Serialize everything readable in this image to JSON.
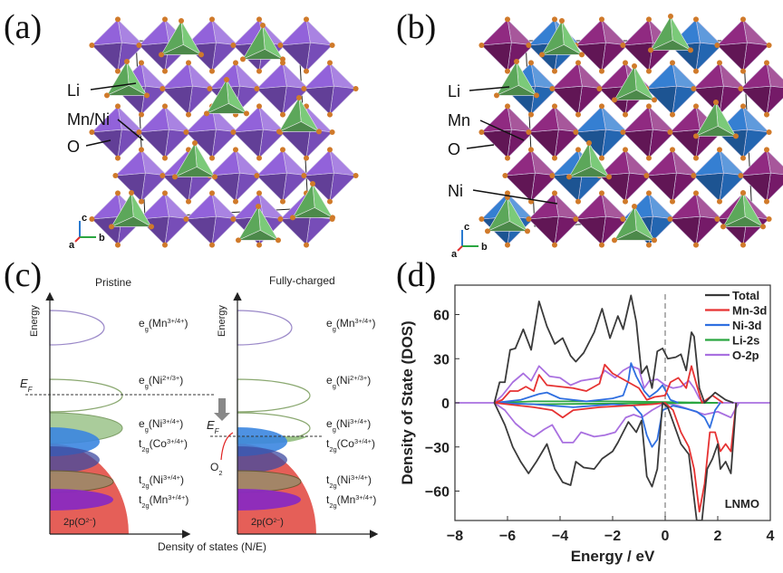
{
  "panels": {
    "a": {
      "label": "(a)",
      "atoms": [
        "Li",
        "Mn/Ni",
        "O"
      ],
      "axes": [
        "c",
        "a",
        "b"
      ],
      "colors": {
        "octahedra": "#8c5ad8",
        "tetrahedra": "#6cc46a",
        "oxygen": "#d07a2a"
      }
    },
    "b": {
      "label": "(b)",
      "atoms": [
        "Li",
        "Mn",
        "O",
        "Ni"
      ],
      "axes": [
        "c",
        "a",
        "b"
      ],
      "colors": {
        "mn_octahedra": "#8a1f7a",
        "ni_octahedra": "#2a78d0",
        "tetrahedra": "#6cc46a",
        "oxygen": "#d07a2a"
      }
    },
    "c": {
      "label": "(c)",
      "left_title": "Pristine",
      "right_title": "Fully-charged",
      "y_axis": "Energy",
      "x_axis": "Density of states (N/E)",
      "fermi": "E",
      "fermi_sub": "F",
      "o2": "O",
      "o2_sub": "2",
      "o2p": "2p(O",
      "o2p_sup": "2−",
      "o2p_close": ")",
      "levels": [
        [
          "e",
          "g",
          "(Mn",
          "3+/4+",
          ")"
        ],
        [
          "e",
          "g",
          "(Ni",
          "2+/3+",
          ")"
        ],
        [
          "e",
          "g",
          "(Ni",
          "3+/4+",
          ")"
        ],
        [
          "t",
          "2g",
          "(Co",
          "3+/4+",
          ")"
        ],
        [
          "t",
          "2g",
          "(Ni",
          "3+/4+",
          ")"
        ],
        [
          "t",
          "2g",
          "(Mn",
          "3+/4+",
          ")"
        ]
      ]
    },
    "d": {
      "label": "(d)"
    }
  },
  "chart_data": {
    "type": "line",
    "xlabel": "Energy / eV",
    "ylabel": "Density of State (DOS)",
    "xlim": [
      -8,
      4
    ],
    "ylim": [
      -80,
      80
    ],
    "xticks": [
      -8,
      -6,
      -4,
      -2,
      0,
      2,
      4
    ],
    "yticks": [
      -60,
      -30,
      0,
      30,
      60
    ],
    "annotation": "LNMO",
    "fermi_line_x": 0,
    "legend_placement": "top-right",
    "series": [
      {
        "name": "Total",
        "color": "#3a3a3a",
        "up": [
          [
            -6.5,
            0
          ],
          [
            -6.3,
            14
          ],
          [
            -6.1,
            14
          ],
          [
            -5.9,
            36
          ],
          [
            -5.7,
            37
          ],
          [
            -5.4,
            50
          ],
          [
            -5.1,
            36
          ],
          [
            -4.8,
            69
          ],
          [
            -4.5,
            52
          ],
          [
            -4.2,
            40
          ],
          [
            -3.9,
            44
          ],
          [
            -3.6,
            32
          ],
          [
            -3.4,
            28
          ],
          [
            -3.1,
            34
          ],
          [
            -2.7,
            48
          ],
          [
            -2.4,
            64
          ],
          [
            -2.1,
            44
          ],
          [
            -1.8,
            59
          ],
          [
            -1.6,
            50
          ],
          [
            -1.3,
            73
          ],
          [
            -1.1,
            55
          ],
          [
            -0.9,
            20
          ],
          [
            -0.7,
            25
          ],
          [
            -0.5,
            10
          ],
          [
            -0.3,
            35
          ],
          [
            -0.1,
            37
          ],
          [
            0.1,
            30
          ],
          [
            0.4,
            31
          ],
          [
            0.6,
            33
          ],
          [
            0.8,
            22
          ],
          [
            1.0,
            48
          ],
          [
            1.1,
            45
          ],
          [
            1.3,
            10
          ],
          [
            1.5,
            0
          ],
          [
            1.9,
            7
          ],
          [
            2.3,
            2
          ],
          [
            2.6,
            0
          ]
        ],
        "down": [
          [
            -6.5,
            0
          ],
          [
            -6.1,
            -15
          ],
          [
            -5.8,
            -30
          ],
          [
            -5.5,
            -40
          ],
          [
            -5.2,
            -48
          ],
          [
            -4.9,
            -40
          ],
          [
            -4.5,
            -28
          ],
          [
            -4.2,
            -45
          ],
          [
            -3.9,
            -54
          ],
          [
            -3.6,
            -56
          ],
          [
            -3.4,
            -40
          ],
          [
            -3.1,
            -44
          ],
          [
            -2.7,
            -45
          ],
          [
            -2.4,
            -38
          ],
          [
            -2.0,
            -33
          ],
          [
            -1.8,
            -27
          ],
          [
            -1.4,
            -13
          ],
          [
            -1.1,
            -20
          ],
          [
            -0.9,
            -12
          ],
          [
            -0.7,
            -50
          ],
          [
            -0.5,
            -57
          ],
          [
            -0.3,
            -45
          ],
          [
            -0.1,
            0
          ],
          [
            0.1,
            -3
          ],
          [
            0.4,
            -18
          ],
          [
            0.6,
            -28
          ],
          [
            0.9,
            -35
          ],
          [
            1.2,
            -80
          ],
          [
            1.4,
            -80
          ],
          [
            1.6,
            -45
          ],
          [
            1.8,
            -38
          ],
          [
            2.0,
            -28
          ],
          [
            2.1,
            -45
          ],
          [
            2.3,
            -40
          ],
          [
            2.5,
            -48
          ],
          [
            2.7,
            0
          ]
        ]
      },
      {
        "name": "Mn-3d",
        "color": "#e63232",
        "up": [
          [
            -6.5,
            0
          ],
          [
            -6.2,
            2
          ],
          [
            -5.9,
            8
          ],
          [
            -5.6,
            8
          ],
          [
            -5.3,
            11
          ],
          [
            -5.0,
            8
          ],
          [
            -4.8,
            19
          ],
          [
            -4.5,
            12
          ],
          [
            -4.0,
            11
          ],
          [
            -3.5,
            10
          ],
          [
            -3.0,
            8
          ],
          [
            -2.5,
            13
          ],
          [
            -2.3,
            26
          ],
          [
            -2.0,
            20
          ],
          [
            -1.5,
            15
          ],
          [
            -1.0,
            10
          ],
          [
            -0.7,
            2
          ],
          [
            -0.4,
            4
          ],
          [
            0,
            5
          ],
          [
            0.2,
            14
          ],
          [
            0.5,
            17
          ],
          [
            0.8,
            10
          ],
          [
            1.0,
            25
          ],
          [
            1.2,
            12
          ],
          [
            1.4,
            0
          ],
          [
            1.8,
            5
          ],
          [
            2.2,
            0
          ]
        ],
        "down": [
          [
            -6.5,
            0
          ],
          [
            -5,
            -3
          ],
          [
            -4.3,
            -5
          ],
          [
            -3.9,
            -10
          ],
          [
            -3.5,
            -5
          ],
          [
            -2.5,
            -3
          ],
          [
            -1.5,
            -2
          ],
          [
            -0.5,
            -1
          ],
          [
            0,
            0
          ],
          [
            0.3,
            -5
          ],
          [
            0.6,
            -20
          ],
          [
            0.9,
            -30
          ],
          [
            1.1,
            -45
          ],
          [
            1.3,
            -74
          ],
          [
            1.5,
            -55
          ],
          [
            1.7,
            -20
          ],
          [
            1.9,
            -20
          ],
          [
            2.1,
            -33
          ],
          [
            2.3,
            -28
          ],
          [
            2.5,
            -33
          ],
          [
            2.7,
            0
          ]
        ]
      },
      {
        "name": "Ni-3d",
        "color": "#2f6fe0",
        "up": [
          [
            -6.5,
            0
          ],
          [
            -5.5,
            2
          ],
          [
            -4.8,
            6
          ],
          [
            -4.5,
            7
          ],
          [
            -4.0,
            3
          ],
          [
            -3,
            1
          ],
          [
            -2,
            3
          ],
          [
            -1.6,
            5
          ],
          [
            -1.4,
            15
          ],
          [
            -1.3,
            27
          ],
          [
            -1.1,
            18
          ],
          [
            -0.8,
            8
          ],
          [
            -0.6,
            4
          ],
          [
            -0.3,
            8
          ],
          [
            -0.1,
            12
          ],
          [
            0.2,
            2
          ],
          [
            0.5,
            0
          ]
        ],
        "down": [
          [
            -6.5,
            0
          ],
          [
            -5,
            -1
          ],
          [
            -3.5,
            -3
          ],
          [
            -2,
            -1
          ],
          [
            -1.2,
            -2
          ],
          [
            -0.9,
            -8
          ],
          [
            -0.7,
            -22
          ],
          [
            -0.5,
            -30
          ],
          [
            -0.3,
            -25
          ],
          [
            -0.1,
            -5
          ],
          [
            0.3,
            -2
          ],
          [
            0.8,
            -4
          ],
          [
            1.2,
            -6
          ],
          [
            1.5,
            -10
          ],
          [
            1.7,
            -17
          ],
          [
            1.9,
            -5
          ],
          [
            2.1,
            0
          ]
        ]
      },
      {
        "name": "Li-2s",
        "color": "#2aa640",
        "up": [
          [
            -6.5,
            0
          ],
          [
            -5,
            1
          ],
          [
            -2,
            1
          ],
          [
            0,
            0.5
          ],
          [
            2,
            0
          ]
        ],
        "down": [
          [
            -6.5,
            0
          ],
          [
            -5,
            -1
          ],
          [
            -2,
            -0.5
          ],
          [
            2,
            0
          ]
        ]
      },
      {
        "name": "O-2p",
        "color": "#a970e0",
        "up": [
          [
            -8,
            0
          ],
          [
            -6.5,
            0
          ],
          [
            -6.2,
            5
          ],
          [
            -5.8,
            14
          ],
          [
            -5.4,
            20
          ],
          [
            -5.1,
            15
          ],
          [
            -4.8,
            25
          ],
          [
            -4.4,
            18
          ],
          [
            -4.0,
            17
          ],
          [
            -3.6,
            12
          ],
          [
            -3.2,
            15
          ],
          [
            -2.5,
            17
          ],
          [
            -2.3,
            22
          ],
          [
            -1.9,
            17
          ],
          [
            -1.6,
            22
          ],
          [
            -1.3,
            25
          ],
          [
            -1.0,
            23
          ],
          [
            -0.8,
            10
          ],
          [
            -0.6,
            15
          ],
          [
            -0.3,
            16
          ],
          [
            0,
            12
          ],
          [
            0.3,
            10
          ],
          [
            0.6,
            11
          ],
          [
            0.9,
            15
          ],
          [
            1.1,
            10
          ],
          [
            1.3,
            3
          ],
          [
            1.5,
            0
          ],
          [
            4,
            0
          ]
        ],
        "down": [
          [
            -6.5,
            0
          ],
          [
            -6.1,
            -5
          ],
          [
            -5.7,
            -14
          ],
          [
            -5.3,
            -20
          ],
          [
            -5.0,
            -23
          ],
          [
            -4.6,
            -18
          ],
          [
            -4.3,
            -15
          ],
          [
            -3.9,
            -27
          ],
          [
            -3.5,
            -27
          ],
          [
            -3.2,
            -20
          ],
          [
            -2.7,
            -23
          ],
          [
            -2.3,
            -22
          ],
          [
            -1.9,
            -20
          ],
          [
            -1.5,
            -10
          ],
          [
            -1.2,
            -8
          ],
          [
            -0.9,
            -10
          ],
          [
            -0.5,
            -5
          ],
          [
            0,
            0
          ],
          [
            0.5,
            -2
          ],
          [
            1,
            -5
          ],
          [
            1.5,
            -8
          ],
          [
            2.0,
            -6
          ],
          [
            2.5,
            -10
          ],
          [
            2.8,
            0
          ]
        ]
      }
    ]
  }
}
